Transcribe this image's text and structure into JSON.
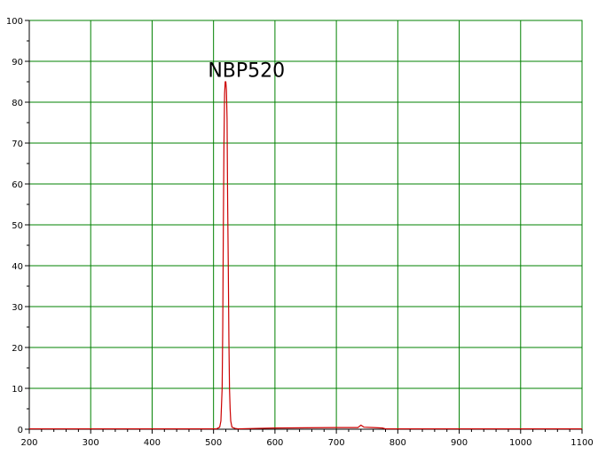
{
  "chart_data": {
    "type": "line",
    "xlim": [
      200,
      1100
    ],
    "ylim": [
      0,
      100
    ],
    "x_ticks": [
      200,
      300,
      400,
      500,
      600,
      700,
      800,
      900,
      1000,
      1100
    ],
    "y_ticks": [
      0,
      10,
      20,
      30,
      40,
      50,
      60,
      70,
      80,
      90,
      100
    ],
    "x_tick_labels": [
      "200",
      "300",
      "400",
      "500",
      "600",
      "700",
      "800",
      "900",
      "1000",
      "1100"
    ],
    "y_tick_labels": [
      "0",
      "10",
      "20",
      "30",
      "40",
      "50",
      "60",
      "70",
      "80",
      "90",
      "100"
    ],
    "grid": true,
    "grid_color": "#008000",
    "axis_color": "#008000",
    "annotation": {
      "text": "NBP520",
      "x": 514,
      "y": 89
    },
    "series": [
      {
        "color": "#cc0000",
        "x": [
          200,
          505,
          510,
          512,
          514,
          515,
          516,
          517,
          518,
          519,
          520,
          521,
          522,
          523,
          524,
          525,
          526,
          527,
          528,
          530,
          535,
          540,
          600,
          700,
          735,
          740,
          745,
          760,
          775,
          780,
          800,
          1100
        ],
        "y": [
          0.1,
          0.1,
          0.5,
          2,
          10,
          25,
          50,
          70,
          82,
          85,
          85,
          83,
          76,
          55,
          40,
          22,
          10,
          5,
          2,
          0.5,
          0.2,
          0.1,
          0.3,
          0.4,
          0.4,
          1.0,
          0.5,
          0.4,
          0.3,
          0.1,
          0.1,
          0.1
        ]
      }
    ]
  }
}
